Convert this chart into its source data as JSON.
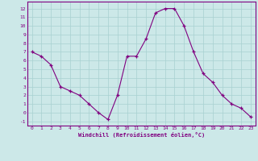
{
  "x": [
    0,
    1,
    2,
    3,
    4,
    5,
    6,
    7,
    8,
    9,
    10,
    11,
    12,
    13,
    14,
    15,
    16,
    17,
    18,
    19,
    20,
    21,
    22,
    23
  ],
  "y": [
    7,
    6.5,
    5.5,
    3,
    2.5,
    2,
    1,
    0,
    -0.8,
    2,
    6.5,
    6.5,
    8.5,
    11.5,
    12,
    12,
    10,
    7,
    4.5,
    3.5,
    2,
    1,
    0.5,
    -0.5
  ],
  "line_color": "#800080",
  "marker": "+",
  "bg_color": "#cce8e8",
  "grid_color": "#a8d0d0",
  "xlabel": "Windchill (Refroidissement éolien,°C)",
  "ylabel_ticks": [
    -1,
    0,
    1,
    2,
    3,
    4,
    5,
    6,
    7,
    8,
    9,
    10,
    11,
    12
  ],
  "xticks": [
    0,
    1,
    2,
    3,
    4,
    5,
    6,
    7,
    8,
    9,
    10,
    11,
    12,
    13,
    14,
    15,
    16,
    17,
    18,
    19,
    20,
    21,
    22,
    23
  ],
  "ylim": [
    -1.5,
    12.8
  ],
  "xlim": [
    -0.5,
    23.5
  ],
  "axis_label_color": "#800080",
  "tick_color": "#800080",
  "font_family": "monospace",
  "spine_color": "#800080"
}
